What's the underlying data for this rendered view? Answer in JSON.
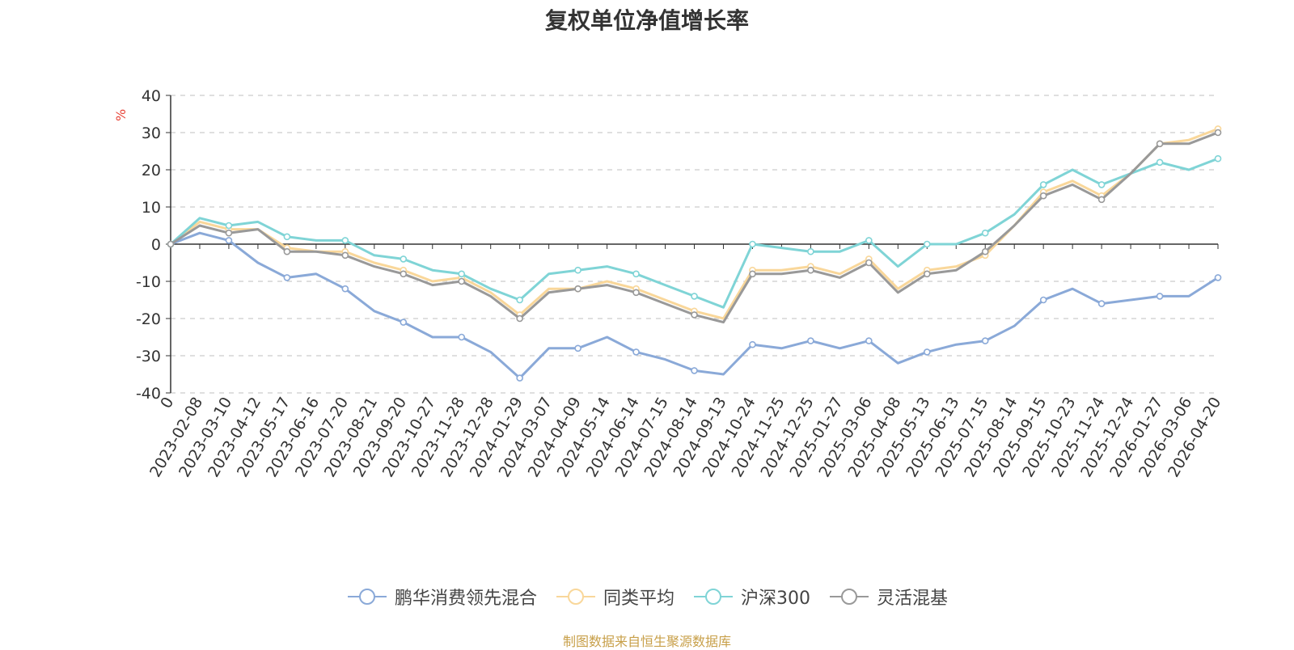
{
  "chart_data": {
    "type": "line",
    "title": "复权单位净值增长率",
    "ylabel": "%",
    "ylim": [
      -40,
      40
    ],
    "yticks": [
      40,
      30,
      20,
      10,
      0,
      -10,
      -20,
      -30,
      -40
    ],
    "x": [
      "0",
      "2023-02-08",
      "2023-03-10",
      "2023-04-12",
      "2023-05-17",
      "2023-06-16",
      "2023-07-20",
      "2023-08-21",
      "2023-09-20",
      "2023-10-27",
      "2023-11-28",
      "2023-12-28",
      "2024-01-29",
      "2024-03-07",
      "2024-04-09",
      "2024-05-14",
      "2024-06-14",
      "2024-07-15",
      "2024-08-14",
      "2024-09-13",
      "2024-10-24",
      "2024-11-25",
      "2024-12-25",
      "2025-01-27",
      "2025-03-06",
      "2025-04-08",
      "2025-05-13",
      "2025-06-13",
      "2025-07-15",
      "2025-08-14",
      "2025-09-15",
      "2025-10-23",
      "2025-11-24",
      "2025-12-24",
      "2026-01-27",
      "2026-03-06",
      "2026-04-20"
    ],
    "series": [
      {
        "name": "鹏华消费领先混合",
        "color": "#8aa9d8",
        "values": [
          0,
          3,
          1,
          -5,
          -9,
          -8,
          -12,
          -18,
          -21,
          -25,
          -25,
          -29,
          -36,
          -28,
          -28,
          -25,
          -29,
          -31,
          -34,
          -35,
          -27,
          -28,
          -26,
          -28,
          -26,
          -32,
          -29,
          -27,
          -26,
          -22,
          -15,
          -12,
          -16,
          -15,
          -14,
          -14,
          -9
        ]
      },
      {
        "name": "同类平均",
        "color": "#f9d79a",
        "values": [
          0,
          6,
          4,
          4,
          -1,
          -2,
          -2,
          -5,
          -7,
          -10,
          -9,
          -13,
          -19,
          -12,
          -12,
          -10,
          -12,
          -15,
          -18,
          -20,
          -7,
          -7,
          -6,
          -8,
          -4,
          -12,
          -7,
          -6,
          -3,
          5,
          14,
          17,
          13,
          19,
          27,
          28,
          31
        ]
      },
      {
        "name": "沪深300",
        "color": "#7fd4d6",
        "values": [
          0,
          7,
          5,
          6,
          2,
          1,
          1,
          -3,
          -4,
          -7,
          -8,
          -12,
          -15,
          -8,
          -7,
          -6,
          -8,
          -11,
          -14,
          -17,
          0,
          -1,
          -2,
          -2,
          1,
          -6,
          0,
          0,
          3,
          8,
          16,
          20,
          16,
          19,
          22,
          20,
          23
        ]
      },
      {
        "name": "灵活混基",
        "color": "#999999",
        "values": [
          0,
          5,
          3,
          4,
          -2,
          -2,
          -3,
          -6,
          -8,
          -11,
          -10,
          -14,
          -20,
          -13,
          -12,
          -11,
          -13,
          -16,
          -19,
          -21,
          -8,
          -8,
          -7,
          -9,
          -5,
          -13,
          -8,
          -7,
          -2,
          5,
          13,
          16,
          12,
          19,
          27,
          27,
          30
        ]
      }
    ]
  },
  "source_note": "制图数据来自恒生聚源数据库"
}
